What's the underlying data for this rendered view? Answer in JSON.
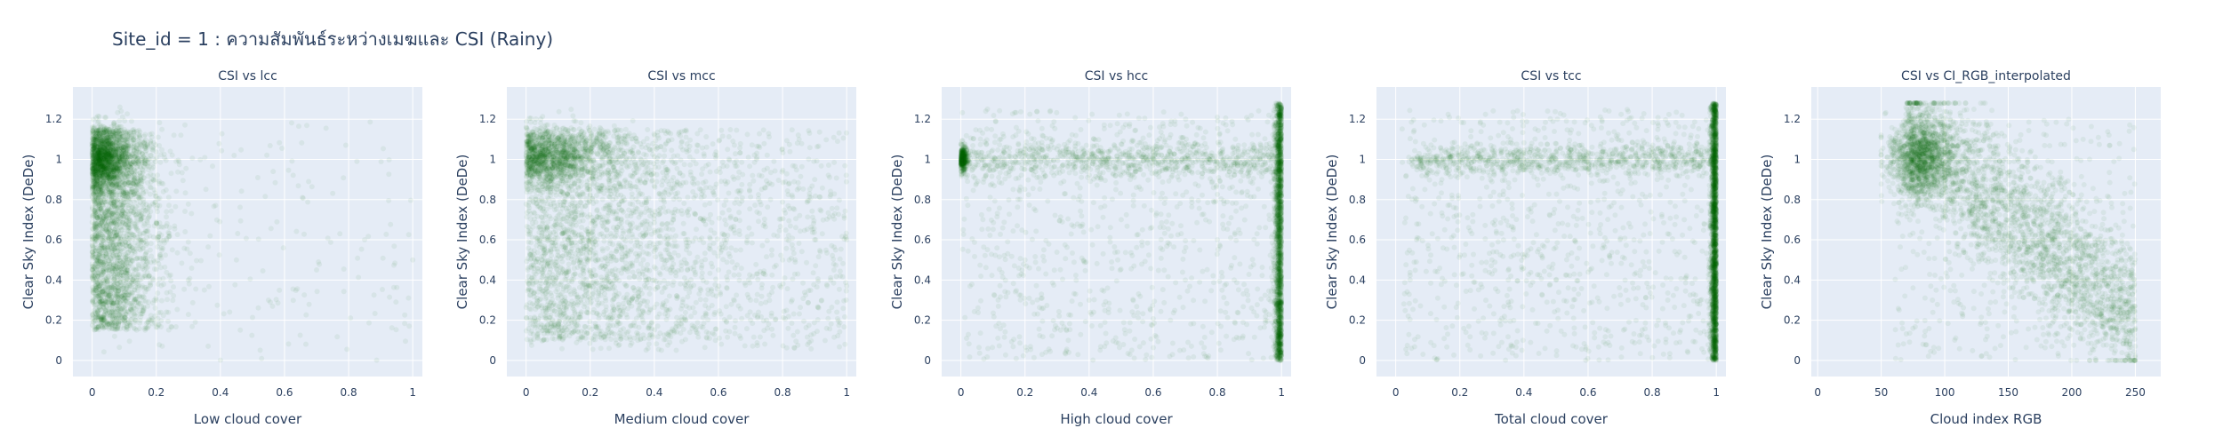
{
  "figure": {
    "title": "Site_id = 1 : ความสัมพันธ์ระหว่างเมฆและ CSI (Rainy)"
  },
  "colors": {
    "plot_bg": "#e5ecf6",
    "grid": "#ffffff",
    "marker": "#006400",
    "text": "#2a3f5f"
  },
  "chart_data": [
    {
      "type": "scatter",
      "title": "CSI vs lcc",
      "xlabel": "Low cloud cover",
      "ylabel": "Clear Sky Index (DeDe)",
      "xlim": [
        -0.06,
        1.03
      ],
      "ylim": [
        -0.08,
        1.36
      ],
      "xticks": [
        0,
        0.2,
        0.4,
        0.6,
        0.8,
        1
      ],
      "xtick_labels": [
        "0",
        "0.2",
        "0.4",
        "0.6",
        "0.8",
        "1"
      ],
      "yticks": [
        0,
        0.2,
        0.4,
        0.6,
        0.8,
        1,
        1.2
      ],
      "ytick_labels": [
        "0",
        "0.2",
        "0.4",
        "0.6",
        "0.8",
        "1",
        "1.2"
      ],
      "grid": true,
      "marker_opacity": 0.06,
      "point_count_approx": 5000,
      "x": [
        0,
        0.01,
        0.02,
        0.03,
        0.05,
        0.06,
        0.08,
        0.1,
        0.12,
        0.15,
        0.18,
        0.2,
        0.25,
        0.3,
        0.35,
        0.45,
        0.55,
        0.7,
        0.85,
        1.0,
        0.02,
        0.07,
        0.11,
        0.16
      ],
      "y": [
        1.02,
        0.6,
        0.85,
        1.05,
        0.45,
        1.1,
        0.7,
        0.5,
        0.98,
        0.4,
        0.62,
        0.3,
        0.55,
        0.4,
        0.35,
        0.5,
        0.3,
        0.45,
        0.6,
        0.5,
        0.2,
        0.12,
        0.95,
        0.75
      ]
    },
    {
      "type": "scatter",
      "title": "CSI vs mcc",
      "xlabel": "Medium cloud cover",
      "ylabel": "Clear Sky Index (DeDe)",
      "xlim": [
        -0.06,
        1.03
      ],
      "ylim": [
        -0.08,
        1.36
      ],
      "xticks": [
        0,
        0.2,
        0.4,
        0.6,
        0.8,
        1
      ],
      "xtick_labels": [
        "0",
        "0.2",
        "0.4",
        "0.6",
        "0.8",
        "1"
      ],
      "yticks": [
        0,
        0.2,
        0.4,
        0.6,
        0.8,
        1,
        1.2
      ],
      "ytick_labels": [
        "0",
        "0.2",
        "0.4",
        "0.6",
        "0.8",
        "1",
        "1.2"
      ],
      "grid": true,
      "marker_opacity": 0.06,
      "point_count_approx": 5000,
      "x": [
        0,
        0.05,
        0.1,
        0.15,
        0.2,
        0.25,
        0.3,
        0.4,
        0.5,
        0.6,
        0.7,
        0.8,
        0.9,
        1.0,
        0.03,
        0.12,
        0.35,
        0.55,
        0.75,
        0.95
      ],
      "y": [
        1.02,
        1.05,
        1.0,
        0.7,
        0.6,
        0.45,
        0.5,
        0.4,
        0.55,
        0.45,
        0.3,
        0.5,
        0.6,
        0.6,
        0.8,
        0.3,
        0.25,
        0.7,
        0.2,
        0.4
      ]
    },
    {
      "type": "scatter",
      "title": "CSI vs hcc",
      "xlabel": "High cloud cover",
      "ylabel": "Clear Sky Index (DeDe)",
      "xlim": [
        -0.06,
        1.03
      ],
      "ylim": [
        -0.08,
        1.36
      ],
      "xticks": [
        0,
        0.2,
        0.4,
        0.6,
        0.8,
        1
      ],
      "xtick_labels": [
        "0",
        "0.2",
        "0.4",
        "0.6",
        "0.8",
        "1"
      ],
      "yticks": [
        0,
        0.2,
        0.4,
        0.6,
        0.8,
        1,
        1.2
      ],
      "ytick_labels": [
        "0",
        "0.2",
        "0.4",
        "0.6",
        "0.8",
        "1",
        "1.2"
      ],
      "grid": true,
      "marker_opacity": 0.06,
      "point_count_approx": 5000,
      "x": [
        0,
        0,
        0.02,
        0.1,
        0.2,
        0.3,
        0.4,
        0.5,
        0.6,
        0.7,
        0.8,
        0.9,
        0.95,
        1.0,
        1.0,
        1.0,
        1.0,
        1.0,
        1.0
      ],
      "y": [
        1.0,
        0.98,
        1.02,
        1.0,
        0.5,
        1.05,
        0.3,
        0.7,
        1.0,
        0.4,
        0.6,
        0.95,
        0.2,
        0.1,
        0.3,
        0.5,
        0.7,
        0.9,
        1.2
      ]
    },
    {
      "type": "scatter",
      "title": "CSI vs tcc",
      "xlabel": "Total cloud cover",
      "ylabel": "Clear Sky Index (DeDe)",
      "xlim": [
        -0.06,
        1.03
      ],
      "ylim": [
        -0.08,
        1.36
      ],
      "xticks": [
        0,
        0.2,
        0.4,
        0.6,
        0.8,
        1
      ],
      "xtick_labels": [
        "0",
        "0.2",
        "0.4",
        "0.6",
        "0.8",
        "1"
      ],
      "yticks": [
        0,
        0.2,
        0.4,
        0.6,
        0.8,
        1,
        1.2
      ],
      "ytick_labels": [
        "0",
        "0.2",
        "0.4",
        "0.6",
        "0.8",
        "1",
        "1.2"
      ],
      "grid": true,
      "marker_opacity": 0.06,
      "point_count_approx": 5000,
      "x": [
        0.05,
        0.08,
        0.1,
        0.2,
        0.3,
        0.4,
        0.5,
        0.6,
        0.7,
        0.8,
        0.9,
        0.95,
        1.0,
        1.0,
        1.0,
        1.0,
        1.0,
        1.0
      ],
      "y": [
        1.0,
        0.98,
        1.02,
        1.0,
        0.5,
        1.0,
        0.4,
        0.95,
        0.6,
        1.05,
        0.7,
        0.3,
        0.1,
        0.3,
        0.5,
        0.7,
        0.9,
        1.2
      ]
    },
    {
      "type": "scatter",
      "title": "CSI vs CI_RGB_interpolated",
      "xlabel": "Cloud index RGB",
      "ylabel": "Clear Sky Index (DeDe)",
      "xlim": [
        -5,
        270
      ],
      "ylim": [
        -0.08,
        1.36
      ],
      "xticks": [
        0,
        50,
        100,
        150,
        200,
        250
      ],
      "xtick_labels": [
        "0",
        "50",
        "100",
        "150",
        "200",
        "250"
      ],
      "yticks": [
        0,
        0.2,
        0.4,
        0.6,
        0.8,
        1,
        1.2
      ],
      "ytick_labels": [
        "0",
        "0.2",
        "0.4",
        "0.6",
        "0.8",
        "1",
        "1.2"
      ],
      "grid": true,
      "marker_opacity": 0.06,
      "point_count_approx": 5000,
      "x": [
        60,
        70,
        80,
        90,
        100,
        110,
        120,
        130,
        140,
        150,
        160,
        170,
        180,
        190,
        200,
        210,
        220,
        230,
        240,
        250,
        85,
        125
      ],
      "y": [
        1.05,
        1.02,
        1.0,
        1.0,
        0.95,
        0.85,
        0.75,
        0.65,
        0.6,
        0.5,
        0.45,
        0.4,
        0.35,
        0.3,
        0.3,
        0.25,
        0.25,
        0.2,
        0.15,
        0.2,
        1.1,
        0.9
      ]
    }
  ]
}
